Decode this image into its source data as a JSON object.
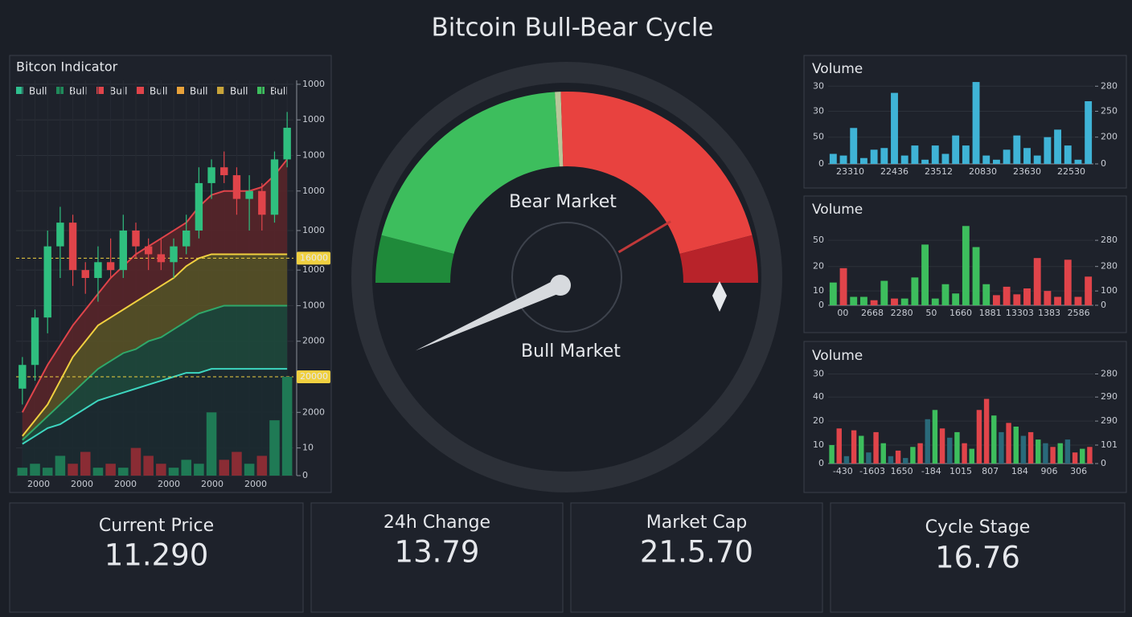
{
  "title": "Bitcoin Bull-Bear Cycle",
  "chart_data": [
    {
      "type": "candlestick",
      "title": "Bitcon Indicator",
      "legend": [
        {
          "name": "Bull",
          "color": "#2fbf8f"
        },
        {
          "name": "Bull",
          "color": "#1f8a5a"
        },
        {
          "name": "Bull",
          "color": "#e0444a"
        },
        {
          "name": "Bull",
          "color": "#e0444a"
        },
        {
          "name": "Bull",
          "color": "#e8a23a"
        },
        {
          "name": "Bull",
          "color": "#c8a43a"
        },
        {
          "name": "Bull",
          "color": "#3dbe5d"
        }
      ],
      "x_labels": [
        "2000",
        "2000",
        "2000",
        "2000",
        "2000",
        "2000"
      ],
      "ylim": [
        0,
        100
      ],
      "yticks": [
        {
          "value": 99,
          "label": "1000"
        },
        {
          "value": 90,
          "label": "1000"
        },
        {
          "value": 81,
          "label": "1000"
        },
        {
          "value": 72,
          "label": "1000"
        },
        {
          "value": 62,
          "label": "1000"
        },
        {
          "value": 52,
          "label": "1000"
        },
        {
          "value": 43,
          "label": "1000"
        },
        {
          "value": 34,
          "label": "2000"
        },
        {
          "value": 16,
          "label": "2000"
        },
        {
          "value": 7,
          "label": "10"
        },
        0
      ],
      "open": [
        22,
        28,
        40,
        58,
        64,
        52,
        50,
        54,
        52,
        62,
        58,
        56,
        54,
        58,
        62,
        74,
        78,
        76,
        70,
        72,
        66,
        80
      ],
      "high": [
        30,
        42,
        62,
        68,
        66,
        54,
        58,
        60,
        66,
        64,
        60,
        60,
        60,
        66,
        78,
        80,
        82,
        78,
        76,
        74,
        82,
        92
      ],
      "low": [
        18,
        24,
        36,
        50,
        48,
        46,
        44,
        50,
        50,
        55,
        52,
        52,
        50,
        56,
        60,
        70,
        74,
        66,
        62,
        62,
        64,
        78
      ],
      "close": [
        28,
        40,
        58,
        64,
        52,
        50,
        54,
        52,
        62,
        58,
        56,
        54,
        58,
        62,
        74,
        78,
        76,
        70,
        72,
        66,
        80,
        88
      ],
      "up_color": "#2fbf7f",
      "down_color": "#e0444a",
      "bands": [
        {
          "color": "#e0444a",
          "fill": "#5a2529",
          "values": [
            16,
            22,
            28,
            33,
            38,
            42,
            46,
            50,
            53,
            56,
            58,
            60,
            62,
            64,
            68,
            71,
            72,
            72,
            72,
            73,
            76,
            80
          ]
        },
        {
          "color": "#f0d040",
          "fill": "#5a5426",
          "values": [
            10,
            14,
            18,
            24,
            30,
            34,
            38,
            40,
            42,
            44,
            46,
            48,
            50,
            53,
            55,
            56,
            56,
            56,
            56,
            56,
            56,
            56
          ]
        },
        {
          "color": "#2fa86a",
          "fill": "#1d4a3c",
          "values": [
            9,
            12,
            15,
            18,
            21,
            24,
            27,
            29,
            31,
            32,
            34,
            35,
            37,
            39,
            41,
            42,
            43,
            43,
            43,
            43,
            43,
            43
          ]
        },
        {
          "color": "#3dd6c0",
          "fill": "#1b2a30",
          "values": [
            8,
            10,
            12,
            13,
            15,
            17,
            19,
            20,
            21,
            22,
            23,
            24,
            25,
            26,
            26,
            27,
            27,
            27,
            27,
            27,
            27,
            27
          ]
        }
      ],
      "volume": [
        2,
        3,
        2,
        5,
        3,
        6,
        2,
        3,
        2,
        7,
        5,
        3,
        2,
        4,
        3,
        16,
        4,
        6,
        3,
        5,
        14,
        25
      ],
      "markers": [
        {
          "value": 55,
          "label": "16000"
        },
        {
          "value": 25,
          "label": "20000"
        }
      ]
    },
    {
      "type": "gauge",
      "top_label": "Bear Market",
      "bottom_label": "Bull Market",
      "lim": [
        0,
        100
      ],
      "segments": [
        {
          "from": 0,
          "to": 8,
          "color": "#1f8a3a"
        },
        {
          "from": 8,
          "to": 48,
          "color": "#3dbe5d"
        },
        {
          "from": 48,
          "to": 49,
          "color": "#b8c79a"
        },
        {
          "from": 49,
          "to": 92,
          "color": "#e8423f"
        },
        {
          "from": 92,
          "to": 100,
          "color": "#b8232a"
        }
      ],
      "needle": -13,
      "marker": 83
    },
    {
      "type": "bar",
      "title": "Volume",
      "ylim": [
        0,
        100
      ],
      "yticks": [
        0,
        {
          "value": 32,
          "label": "50"
        },
        {
          "value": 63,
          "label": "30"
        },
        {
          "value": 93,
          "label": "30"
        }
      ],
      "y2ticks": [
        0,
        {
          "value": 32,
          "label": "200"
        },
        {
          "value": 63,
          "label": "250"
        },
        {
          "value": 93,
          "label": "280"
        }
      ],
      "x_labels": [
        "23310",
        "22436",
        "23512",
        "20830",
        "23630",
        "22530"
      ],
      "color": "#3fb3d6",
      "values": [
        12,
        10,
        43,
        7,
        17,
        19,
        85,
        10,
        22,
        5,
        22,
        12,
        34,
        22,
        98,
        10,
        5,
        17,
        34,
        19,
        10,
        32,
        41,
        22,
        5,
        75
      ]
    },
    {
      "type": "bar",
      "title": "Volume",
      "ylim": [
        0,
        100
      ],
      "yticks": [
        0,
        {
          "value": 17,
          "label": "10"
        },
        {
          "value": 46,
          "label": "20"
        },
        {
          "value": 77,
          "label": "50"
        }
      ],
      "y2ticks": [
        0,
        {
          "value": 17,
          "label": "100"
        },
        {
          "value": 46,
          "label": "280"
        },
        {
          "value": 77,
          "label": "280"
        }
      ],
      "x_labels": [
        "00",
        "2668",
        "2280",
        "50",
        "1660",
        "1881",
        "13303",
        "1383",
        "2586"
      ],
      "values": [
        27,
        44,
        10,
        10,
        6,
        29,
        8,
        8,
        33,
        72,
        8,
        25,
        14,
        94,
        69,
        25,
        12,
        22,
        13,
        20,
        56,
        17,
        10,
        54,
        10,
        34
      ],
      "colors": [
        "#3dbe5d",
        "#e0444a",
        "#3dbe5d",
        "#3dbe5d",
        "#e0444a",
        "#3dbe5d",
        "#e0444a",
        "#3dbe5d",
        "#3dbe5d",
        "#3dbe5d",
        "#3dbe5d",
        "#3dbe5d",
        "#3dbe5d",
        "#3dbe5d",
        "#3dbe5d",
        "#3dbe5d",
        "#e0444a",
        "#e0444a",
        "#e0444a",
        "#e0444a",
        "#e0444a",
        "#e0444a",
        "#e0444a",
        "#e0444a",
        "#e0444a",
        "#e0444a"
      ]
    },
    {
      "type": "bar",
      "title": "Volume",
      "ylim": [
        0,
        100
      ],
      "yticks": [
        0,
        {
          "value": 20,
          "label": "10"
        },
        {
          "value": 46,
          "label": "20"
        },
        {
          "value": 72,
          "label": "40"
        },
        {
          "value": 97,
          "label": "30"
        }
      ],
      "y2ticks": [
        0,
        {
          "value": 20,
          "label": "101"
        },
        {
          "value": 46,
          "label": "290"
        },
        {
          "value": 72,
          "label": "290"
        },
        {
          "value": 97,
          "label": "280"
        }
      ],
      "x_labels": [
        "-430",
        "-1603",
        "1650",
        "-184",
        "1015",
        "807",
        "184",
        "906",
        "306"
      ],
      "values": [
        20,
        38,
        8,
        36,
        30,
        12,
        34,
        22,
        8,
        14,
        6,
        18,
        22,
        48,
        58,
        38,
        28,
        34,
        22,
        16,
        58,
        70,
        52,
        34,
        44,
        40,
        30,
        34,
        26,
        22,
        18,
        22,
        26,
        12,
        16,
        18
      ],
      "colors": [
        "#3dbe5d",
        "#e0444a",
        "#2a6a7a",
        "#e0444a",
        "#3dbe5d",
        "#2a6a7a",
        "#e0444a",
        "#3dbe5d",
        "#2a6a7a",
        "#e0444a",
        "#2a6a7a",
        "#3dbe5d",
        "#e0444a",
        "#2a6a7a",
        "#3dbe5d",
        "#e0444a",
        "#2a6a7a",
        "#3dbe5d",
        "#e0444a",
        "#3dbe5d",
        "#e0444a",
        "#e0444a",
        "#3dbe5d",
        "#2a6a7a",
        "#e0444a",
        "#3dbe5d",
        "#2a6a7a",
        "#e0444a",
        "#3dbe5d",
        "#2a6a7a",
        "#e0444a",
        "#3dbe5d",
        "#2a6a7a",
        "#e0444a",
        "#3dbe5d",
        "#e0444a"
      ]
    }
  ],
  "cards": [
    {
      "label": "Current Price",
      "value": "11.290"
    },
    {
      "label": "24h Change",
      "value": "13.79"
    },
    {
      "label": "Market Cap",
      "value": "21.5.70"
    },
    {
      "label": "Cycle Stage",
      "value": "16.76"
    }
  ]
}
